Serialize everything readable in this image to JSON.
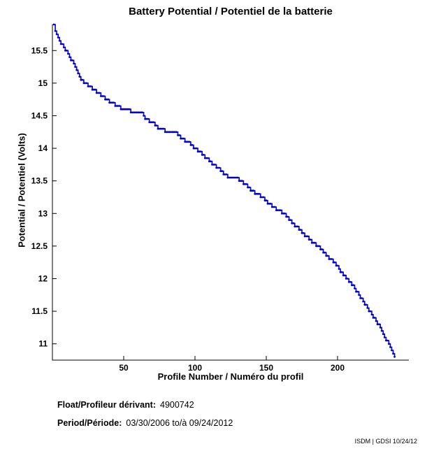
{
  "chart_data": {
    "type": "line",
    "title": "Battery Potential / Potentiel de la batterie",
    "xlabel": "Profile Number / Numéro du profil",
    "ylabel": "Potential / Potentiel (Volts)",
    "xlim": [
      0,
      250
    ],
    "ylim": [
      10.75,
      15.9
    ],
    "x_ticks": [
      50,
      100,
      150,
      200
    ],
    "y_ticks": [
      11,
      11.5,
      12,
      12.5,
      13,
      13.5,
      14,
      14.5,
      15,
      15.5
    ],
    "grid": false,
    "legend": "none",
    "line_color": "#0000CC",
    "axis_color": "#000000",
    "quantize_step": 0.05,
    "control_points": [
      [
        0.5,
        15.9
      ],
      [
        1,
        15.88
      ],
      [
        2,
        15.82
      ],
      [
        3,
        15.76
      ],
      [
        4,
        15.7
      ],
      [
        5,
        15.66
      ],
      [
        6,
        15.62
      ],
      [
        7,
        15.58
      ],
      [
        8,
        15.55
      ],
      [
        10,
        15.48
      ],
      [
        12,
        15.4
      ],
      [
        14,
        15.33
      ],
      [
        16,
        15.25
      ],
      [
        18,
        15.15
      ],
      [
        20,
        15.07
      ],
      [
        22,
        15.02
      ],
      [
        25,
        14.97
      ],
      [
        28,
        14.92
      ],
      [
        31,
        14.87
      ],
      [
        34,
        14.82
      ],
      [
        37,
        14.77
      ],
      [
        40,
        14.72
      ],
      [
        44,
        14.67
      ],
      [
        48,
        14.62
      ],
      [
        52,
        14.58
      ],
      [
        58,
        14.57
      ],
      [
        63,
        14.55
      ],
      [
        65,
        14.47
      ],
      [
        68,
        14.42
      ],
      [
        71,
        14.4
      ],
      [
        74,
        14.32
      ],
      [
        77,
        14.28
      ],
      [
        82,
        14.26
      ],
      [
        87,
        14.24
      ],
      [
        90,
        14.17
      ],
      [
        93,
        14.12
      ],
      [
        96,
        14.08
      ],
      [
        99,
        14.02
      ],
      [
        102,
        13.97
      ],
      [
        105,
        13.92
      ],
      [
        108,
        13.85
      ],
      [
        111,
        13.78
      ],
      [
        114,
        13.73
      ],
      [
        117,
        13.68
      ],
      [
        120,
        13.62
      ],
      [
        123,
        13.57
      ],
      [
        128,
        13.55
      ],
      [
        132,
        13.5
      ],
      [
        135,
        13.45
      ],
      [
        138,
        13.38
      ],
      [
        141,
        13.33
      ],
      [
        145,
        13.28
      ],
      [
        149,
        13.22
      ],
      [
        152,
        13.15
      ],
      [
        155,
        13.1
      ],
      [
        158,
        13.05
      ],
      [
        162,
        13.0
      ],
      [
        165,
        12.93
      ],
      [
        168,
        12.87
      ],
      [
        171,
        12.8
      ],
      [
        174,
        12.73
      ],
      [
        177,
        12.67
      ],
      [
        180,
        12.62
      ],
      [
        183,
        12.55
      ],
      [
        186,
        12.5
      ],
      [
        189,
        12.43
      ],
      [
        192,
        12.37
      ],
      [
        195,
        12.3
      ],
      [
        198,
        12.23
      ],
      [
        201,
        12.15
      ],
      [
        204,
        12.05
      ],
      [
        207,
        12.0
      ],
      [
        210,
        11.92
      ],
      [
        213,
        11.82
      ],
      [
        215,
        11.75
      ],
      [
        217,
        11.68
      ],
      [
        219,
        11.62
      ],
      [
        221,
        11.55
      ],
      [
        223,
        11.48
      ],
      [
        225,
        11.42
      ],
      [
        227,
        11.35
      ],
      [
        229,
        11.28
      ],
      [
        231,
        11.2
      ],
      [
        233,
        11.12
      ],
      [
        235,
        11.03
      ],
      [
        237,
        10.95
      ],
      [
        239,
        10.85
      ],
      [
        240,
        10.78
      ]
    ]
  },
  "footer": {
    "float_label": "Float/Profileur dérivant:",
    "float_value": "4900742",
    "period_label": "Period/Période:",
    "period_value": "03/30/2006 to/à 09/24/2012",
    "stamp": "ISDM | GDSI 10/24/12"
  }
}
